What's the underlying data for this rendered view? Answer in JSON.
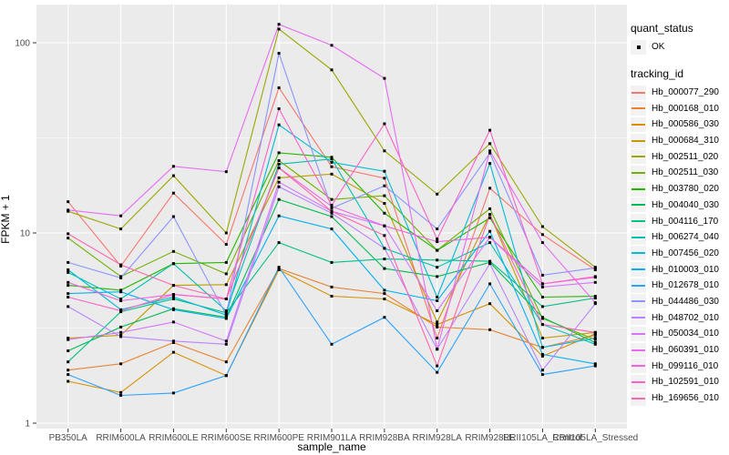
{
  "figure": {
    "legend": {
      "quant_status_title": "quant_status",
      "quant_status_value": "OK",
      "tracking_id_title": "tracking_id"
    },
    "y_axis": {
      "tick_labels": [
        "100",
        "10",
        "1"
      ],
      "tick_values": [
        100,
        10,
        1
      ],
      "minor_values": [
        31.62,
        3.162
      ]
    },
    "colors": {
      "panel_bg": "#EBEBEB",
      "grid": "#FFFFFF",
      "legend_key_bg": "#F2F2F2",
      "tick_label": "#4D4D4D",
      "tick_mark": "#333333",
      "point": "#000000"
    }
  },
  "chart_data": {
    "type": "line",
    "title": "",
    "xlabel": "sample_name",
    "ylabel": "FPKM + 1",
    "y_scale": "log10",
    "ylim": [
      0.94,
      157
    ],
    "grid": true,
    "legend_position": "right",
    "marker": "black-point",
    "quant_status": "OK",
    "categories": [
      "PB350LA",
      "RRIM600LA",
      "RRIM600LE",
      "RRIM600SE",
      "RRIM600PE",
      "RRIM901LA",
      "RRIM928BA",
      "RRIM928LA",
      "RRIM928LE",
      "RRII105LA_Control",
      "RRII105LA_Stressed"
    ],
    "series": [
      {
        "name": "Hb_000077_290",
        "color": "#F8766D",
        "values": [
          14.6,
          6.7,
          16.2,
          8.7,
          58,
          22.3,
          19.4,
          2.8,
          17.2,
          9.8,
          6.4
        ]
      },
      {
        "name": "Hb_000168_010",
        "color": "#EA8331",
        "values": [
          1.9,
          2.05,
          2.65,
          2.1,
          6.5,
          5.2,
          4.8,
          3.2,
          3.1,
          2.5,
          2.9
        ]
      },
      {
        "name": "Hb_000586_030",
        "color": "#D89000",
        "values": [
          1.66,
          1.45,
          2.36,
          1.78,
          6.4,
          4.65,
          4.5,
          3.3,
          4.25,
          2.25,
          2.95
        ]
      },
      {
        "name": "Hb_000684_310",
        "color": "#BE9C00",
        "values": [
          2.8,
          2.9,
          5.3,
          5.35,
          19.5,
          20.4,
          14.3,
          3.4,
          12.5,
          2.8,
          3.0
        ]
      },
      {
        "name": "Hb_002511_020",
        "color": "#9CA700",
        "values": [
          13.0,
          10.5,
          20.0,
          10.0,
          118,
          72,
          27,
          16,
          29.5,
          10.8,
          6.6
        ]
      },
      {
        "name": "Hb_002511_030",
        "color": "#6FB000",
        "values": [
          9.4,
          5.9,
          8.0,
          6.1,
          24,
          15,
          15.7,
          8.1,
          13.4,
          3.55,
          2.75
        ]
      },
      {
        "name": "Hb_003780_020",
        "color": "#24B700",
        "values": [
          5.3,
          5.0,
          6.9,
          7.0,
          26.4,
          25,
          12.7,
          8.1,
          12.0,
          4.6,
          4.65
        ]
      },
      {
        "name": "Hb_004040_030",
        "color": "#00BC51",
        "values": [
          2.4,
          3.2,
          4.0,
          3.6,
          15,
          12.2,
          6.5,
          5.9,
          7.0,
          3.6,
          2.65
        ]
      },
      {
        "name": "Hb_004116_170",
        "color": "#00C087",
        "values": [
          2.1,
          3.85,
          4.5,
          3.8,
          8.9,
          7.0,
          7.3,
          7.2,
          7.1,
          4.1,
          4.55
        ]
      },
      {
        "name": "Hb_006274_040",
        "color": "#00C0B2",
        "values": [
          6.2,
          4.5,
          6.9,
          3.9,
          23,
          24.5,
          8.3,
          6.6,
          8.9,
          3.3,
          2.6
        ]
      },
      {
        "name": "Hb_007456_020",
        "color": "#00BBD6",
        "values": [
          6.4,
          3.95,
          4.6,
          3.7,
          37,
          23.5,
          21.1,
          4.6,
          23.2,
          2.5,
          2.8
        ]
      },
      {
        "name": "Hb_010003_010",
        "color": "#00B2F3",
        "values": [
          4.8,
          4.9,
          3.95,
          3.55,
          12.3,
          10.5,
          5.0,
          4.4,
          10.2,
          2.3,
          2.05
        ]
      },
      {
        "name": "Hb_012678_010",
        "color": "#29A3FF",
        "values": [
          1.8,
          1.4,
          1.44,
          1.78,
          6.6,
          2.6,
          3.6,
          1.85,
          5.4,
          1.8,
          2.0
        ]
      },
      {
        "name": "Hb_044486_030",
        "color": "#8B93FF",
        "values": [
          7.0,
          5.8,
          12.2,
          3.7,
          88,
          13.5,
          17.7,
          10.5,
          26.3,
          6.0,
          6.55
        ]
      },
      {
        "name": "Hb_048702_010",
        "color": "#B983FF",
        "values": [
          4.1,
          2.85,
          2.7,
          2.6,
          17.5,
          12.7,
          8.3,
          2.45,
          6.9,
          1.9,
          4.25
        ]
      },
      {
        "name": "Hb_050034_010",
        "color": "#D575FE",
        "values": [
          2.75,
          3.0,
          3.4,
          2.7,
          18.5,
          13.0,
          10.9,
          3.9,
          9.5,
          5.2,
          5.5
        ]
      },
      {
        "name": "Hb_060391_010",
        "color": "#E76BF3",
        "values": [
          13.2,
          12.3,
          22.4,
          21.0,
          125,
          97,
          65,
          2.45,
          27.0,
          8.9,
          4.3
        ]
      },
      {
        "name": "Hb_099116_010",
        "color": "#F262E0",
        "values": [
          5.5,
          4.4,
          4.75,
          4.5,
          22,
          13.8,
          10.9,
          9.0,
          9.5,
          5.4,
          5.85
        ]
      },
      {
        "name": "Hb_102591_010",
        "color": "#FC61C9",
        "values": [
          4.6,
          3.9,
          4.75,
          4.5,
          45,
          14.0,
          37.5,
          9.3,
          34.7,
          5.4,
          5.9
        ]
      },
      {
        "name": "Hb_169656_010",
        "color": "#FF65AC",
        "values": [
          9.9,
          6.8,
          5.3,
          4.5,
          22,
          13.0,
          9.7,
          2.0,
          12.5,
          3.3,
          3.0
        ]
      }
    ]
  }
}
